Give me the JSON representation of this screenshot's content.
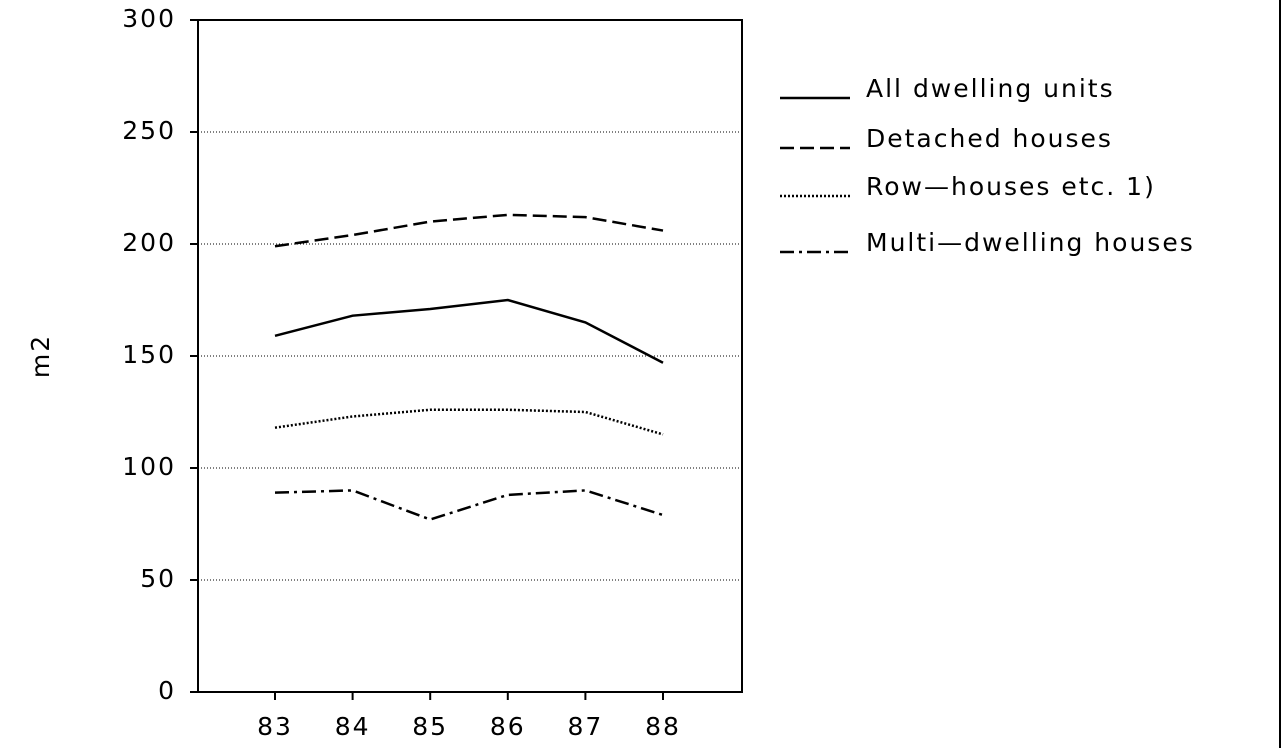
{
  "chart_data": {
    "type": "line",
    "y_label": "m2",
    "categories": [
      "83",
      "84",
      "85",
      "86",
      "87",
      "88"
    ],
    "series": [
      {
        "name": "All dwelling units",
        "color": "#000000",
        "dash": "solid",
        "values": [
          159,
          168,
          171,
          175,
          165,
          147
        ]
      },
      {
        "name": "Detached houses",
        "color": "#000000",
        "dash": "dashed",
        "values": [
          199,
          204,
          210,
          213,
          212,
          206
        ]
      },
      {
        "name": "Row—houses etc. 1)",
        "color": "#000000",
        "dash": "dotted",
        "values": [
          118,
          123,
          126,
          126,
          125,
          115
        ]
      },
      {
        "name": "Multi—dwelling houses",
        "color": "#000000",
        "dash": "dashdot",
        "values": [
          89,
          90,
          77,
          88,
          90,
          79
        ]
      }
    ],
    "ylim": [
      0,
      300
    ],
    "yticks": [
      0,
      50,
      100,
      150,
      200,
      250,
      300
    ],
    "grid": true
  }
}
